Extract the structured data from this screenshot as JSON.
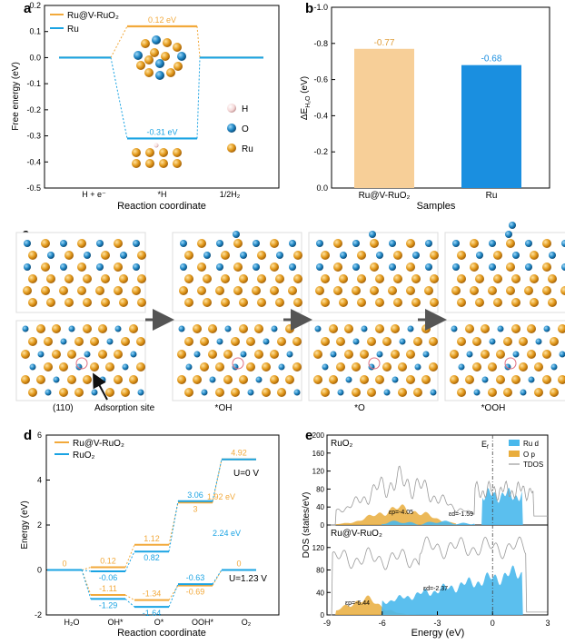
{
  "colors": {
    "ruv": "#f2a93b",
    "ru": "#1aa3e3",
    "ruv_bar": "#f7cf98",
    "ru_bar": "#1a8fe0",
    "ru_ball": "#e8a020",
    "o_ball": "#1f86c4",
    "tdos": "#9a9a9a"
  },
  "panels": {
    "a": "a",
    "b": "b",
    "c": "c",
    "d": "d",
    "e": "e"
  },
  "chart_data": [
    {
      "panel": "a",
      "type": "line",
      "ylabel": "Free energy (eV)",
      "xlabel": "Reaction coordinate",
      "ylim": [
        -0.5,
        0.2
      ],
      "yticks": [
        "0.2",
        "0.1",
        "0.0",
        "-0.1",
        "-0.2",
        "-0.3",
        "-0.4",
        "-0.5"
      ],
      "categories": [
        "H + e-",
        "*H",
        "1/2H2"
      ],
      "x_tick_labels": [
        "H + e⁻",
        "*H",
        "1/2H₂"
      ],
      "series": [
        {
          "name": "Ru@V-RuO₂",
          "values": [
            0,
            0.12,
            0
          ],
          "labels": [
            "",
            "0.12 eV",
            ""
          ]
        },
        {
          "name": "Ru",
          "values": [
            0,
            -0.31,
            0
          ],
          "labels": [
            "",
            "-0.31 eV",
            ""
          ]
        }
      ],
      "atom_legend": [
        "H",
        "O",
        "Ru"
      ]
    },
    {
      "panel": "b",
      "type": "bar",
      "ylabel": "ΔE_H2O (eV)",
      "ylabel_main": "ΔE",
      "ylabel_sub": "H₂O",
      "ylabel_unit": " (eV)",
      "xlabel": "Samples",
      "categories": [
        "Ru@V-RuO₂",
        "Ru"
      ],
      "values": [
        -0.77,
        -0.68
      ],
      "value_labels": [
        "-0.77",
        "-0.68"
      ],
      "ylim": [
        0,
        -1.0
      ],
      "yticks": [
        "-1.0",
        "-0.8",
        "-0.6",
        "-0.4",
        "-0.2",
        "0.0"
      ]
    },
    {
      "panel": "d",
      "type": "line",
      "ylabel": "Energy (eV)",
      "xlabel": "Reaction coordinate",
      "ylim": [
        -2,
        6
      ],
      "yticks": [
        "6",
        "4",
        "2",
        "0",
        "-2"
      ],
      "categories": [
        "H2O",
        "OH*",
        "O*",
        "OOH*",
        "O2"
      ],
      "x_tick_labels": [
        "H₂O",
        "OH*",
        "O*",
        "OOH*",
        "O₂"
      ],
      "series": [
        {
          "name": "Ru@V-RuO₂ U=0 V",
          "values": [
            0,
            0.12,
            1.12,
            3,
            4.92
          ],
          "labels": [
            "0",
            "0.12",
            "1.12",
            "3",
            "4.92"
          ]
        },
        {
          "name": "RuO₂ U=0 V",
          "values": [
            0,
            -0.06,
            0.82,
            3.06,
            4.92
          ],
          "labels": [
            "",
            "-0.06",
            "0.82",
            "3.06",
            ""
          ]
        },
        {
          "name": "Ru@V-RuO₂ U=1.23 V",
          "values": [
            0,
            -1.11,
            -1.34,
            -0.69,
            0
          ],
          "labels": [
            "",
            "-1.11",
            "-1.34",
            "-0.69",
            "0"
          ]
        },
        {
          "name": "RuO₂ U=1.23 V",
          "values": [
            0,
            -1.29,
            -1.64,
            -0.63,
            0
          ],
          "labels": [
            "",
            "-1.29",
            "-1.64",
            "-0.63",
            ""
          ]
        }
      ],
      "legend": [
        "Ru@V-RuO₂",
        "RuO₂"
      ],
      "annotations": [
        "1.92 eV",
        "2.24 eV",
        "U=0 V",
        "U=1.23 V"
      ]
    },
    {
      "panel": "e",
      "type": "area",
      "ylabel": "DOS (states/eV)",
      "xlabel": "Energy (eV)",
      "xlim": [
        -9,
        3
      ],
      "xticks": [
        "-9",
        "-6",
        "-3",
        "0",
        "3"
      ],
      "yticks_top": [
        "0",
        "40",
        "80",
        "120",
        "160",
        "200"
      ],
      "yticks_bottom": [
        "0",
        "40",
        "80",
        "120"
      ],
      "legend": [
        "Ru d",
        "O p",
        "TDOS"
      ],
      "fermi_label": "Eₑ",
      "fermi_main": "E",
      "fermi_sub": "f",
      "subplots": [
        {
          "title": "RuO₂",
          "dband_op": "εp=-4.05",
          "dband_ru": "εd=-1.59",
          "op_center": -4.05,
          "ru_center": -1.59
        },
        {
          "title": "Ru@V-RuO₂",
          "dband_op": "εp=-6.44",
          "dband_ru": "εd=-2.37",
          "op_center": -6.44,
          "ru_center": -2.37
        }
      ]
    }
  ],
  "panel_c": {
    "labels": [
      "(110)",
      "Adsorption site",
      "*OH",
      "*O",
      "*OOH"
    ]
  }
}
